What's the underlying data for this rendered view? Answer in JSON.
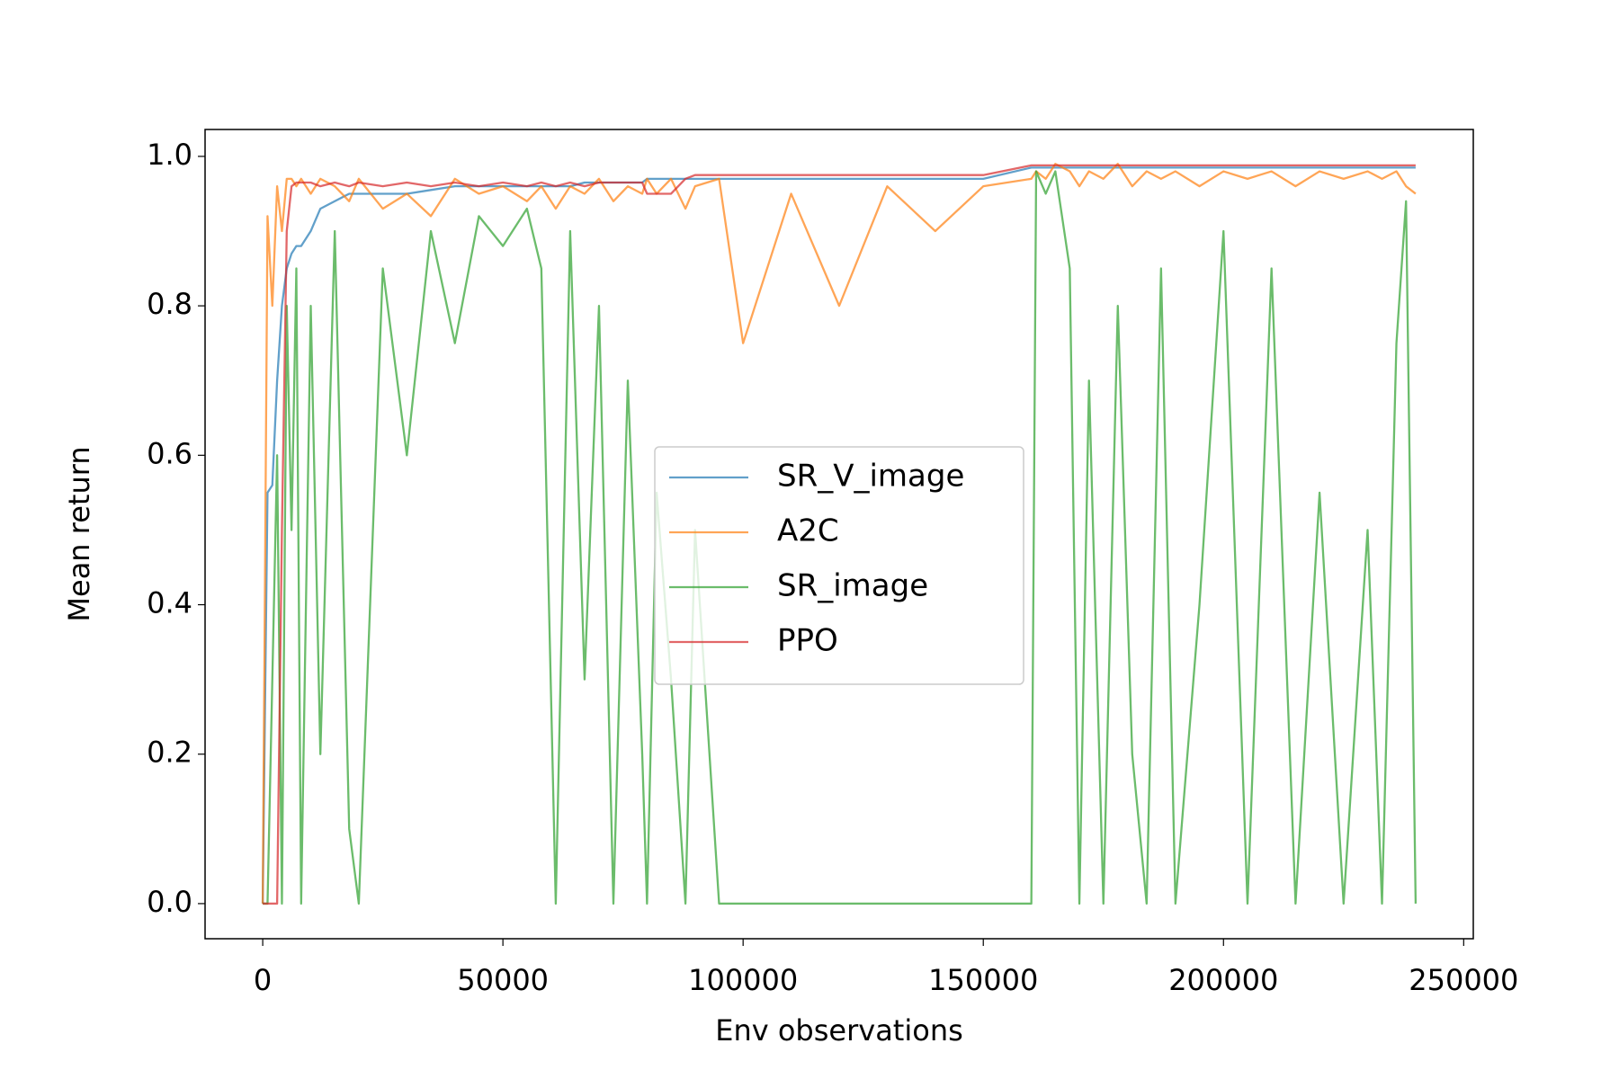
{
  "chart_data": {
    "type": "line",
    "xlabel": "Env observations",
    "ylabel": "Mean return",
    "x": [
      0,
      1000,
      2000,
      3000,
      4000,
      5000,
      6000,
      7000,
      8000,
      10000,
      12000,
      15000,
      18000,
      20000,
      25000,
      30000,
      35000,
      40000,
      45000,
      50000,
      55000,
      58000,
      61000,
      64000,
      67000,
      70000,
      73000,
      76000,
      79000,
      80000,
      82000,
      85000,
      88000,
      90000,
      95000,
      100000,
      110000,
      120000,
      130000,
      140000,
      150000,
      160000,
      161000,
      163000,
      165000,
      168000,
      170000,
      172000,
      175000,
      178000,
      181000,
      184000,
      187000,
      190000,
      195000,
      200000,
      205000,
      210000,
      215000,
      220000,
      225000,
      230000,
      233000,
      236000,
      238000,
      240000
    ],
    "series": [
      {
        "name": "SR_V_image",
        "color": "#1f77b4",
        "values": [
          0,
          0.55,
          0.56,
          0.7,
          0.8,
          0.85,
          0.87,
          0.88,
          0.88,
          0.9,
          0.93,
          0.94,
          0.95,
          0.95,
          0.95,
          0.95,
          0.955,
          0.96,
          0.96,
          0.96,
          0.96,
          0.96,
          0.96,
          0.96,
          0.965,
          0.965,
          0.965,
          0.965,
          0.965,
          0.97,
          0.97,
          0.97,
          0.97,
          0.97,
          0.97,
          0.97,
          0.97,
          0.97,
          0.97,
          0.97,
          0.97,
          0.985,
          0.985,
          0.985,
          0.985,
          0.985,
          0.985,
          0.985,
          0.985,
          0.985,
          0.985,
          0.985,
          0.985,
          0.985,
          0.985,
          0.985,
          0.985,
          0.985,
          0.985,
          0.985,
          0.985,
          0.985,
          0.985,
          0.985,
          0.985,
          0.985
        ]
      },
      {
        "name": "A2C",
        "color": "#ff7f0e",
        "values": [
          0,
          0.92,
          0.8,
          0.96,
          0.9,
          0.97,
          0.97,
          0.96,
          0.97,
          0.95,
          0.97,
          0.96,
          0.94,
          0.97,
          0.93,
          0.95,
          0.92,
          0.97,
          0.95,
          0.96,
          0.94,
          0.96,
          0.93,
          0.96,
          0.95,
          0.97,
          0.94,
          0.96,
          0.95,
          0.97,
          0.95,
          0.97,
          0.93,
          0.96,
          0.97,
          0.75,
          0.95,
          0.8,
          0.96,
          0.9,
          0.96,
          0.97,
          0.98,
          0.97,
          0.99,
          0.98,
          0.96,
          0.98,
          0.97,
          0.99,
          0.96,
          0.98,
          0.97,
          0.98,
          0.96,
          0.98,
          0.97,
          0.98,
          0.96,
          0.98,
          0.97,
          0.98,
          0.97,
          0.98,
          0.96,
          0.95
        ]
      },
      {
        "name": "SR_image",
        "color": "#2ca02c",
        "values": [
          0,
          0,
          0.3,
          0.6,
          0,
          0.8,
          0.5,
          0.85,
          0,
          0.8,
          0.2,
          0.9,
          0.1,
          0,
          0.85,
          0.6,
          0.9,
          0.75,
          0.92,
          0.88,
          0.93,
          0.85,
          0,
          0.9,
          0.3,
          0.8,
          0,
          0.7,
          0.2,
          0,
          0.55,
          0.3,
          0,
          0.5,
          0,
          0,
          0,
          0,
          0,
          0,
          0,
          0,
          0.98,
          0.95,
          0.98,
          0.85,
          0,
          0.7,
          0,
          0.8,
          0.2,
          0,
          0.85,
          0,
          0.4,
          0.9,
          0,
          0.85,
          0,
          0.55,
          0,
          0.5,
          0,
          0.75,
          0.94,
          0
        ]
      },
      {
        "name": "PPO",
        "color": "#d62728",
        "values": [
          0,
          0,
          0,
          0,
          0.5,
          0.9,
          0.96,
          0.965,
          0.965,
          0.965,
          0.96,
          0.965,
          0.96,
          0.965,
          0.96,
          0.965,
          0.96,
          0.965,
          0.96,
          0.965,
          0.96,
          0.965,
          0.96,
          0.965,
          0.96,
          0.965,
          0.965,
          0.965,
          0.965,
          0.95,
          0.95,
          0.95,
          0.97,
          0.975,
          0.975,
          0.975,
          0.975,
          0.975,
          0.975,
          0.975,
          0.975,
          0.988,
          0.988,
          0.988,
          0.988,
          0.988,
          0.988,
          0.988,
          0.988,
          0.988,
          0.988,
          0.988,
          0.988,
          0.988,
          0.988,
          0.988,
          0.988,
          0.988,
          0.988,
          0.988,
          0.988,
          0.988,
          0.988,
          0.988,
          0.988,
          0.988
        ]
      }
    ],
    "xlim": [
      -12000,
      252000
    ],
    "ylim": [
      -0.047,
      1.036
    ],
    "xticks": [
      0,
      50000,
      100000,
      150000,
      200000,
      250000
    ],
    "yticks": [
      {
        "value": 0,
        "label": "0.0"
      },
      0.2,
      0.4,
      0.6,
      0.8,
      {
        "value": 1,
        "label": "1.0"
      }
    ],
    "line_alpha": 0.7,
    "legend": "center"
  }
}
